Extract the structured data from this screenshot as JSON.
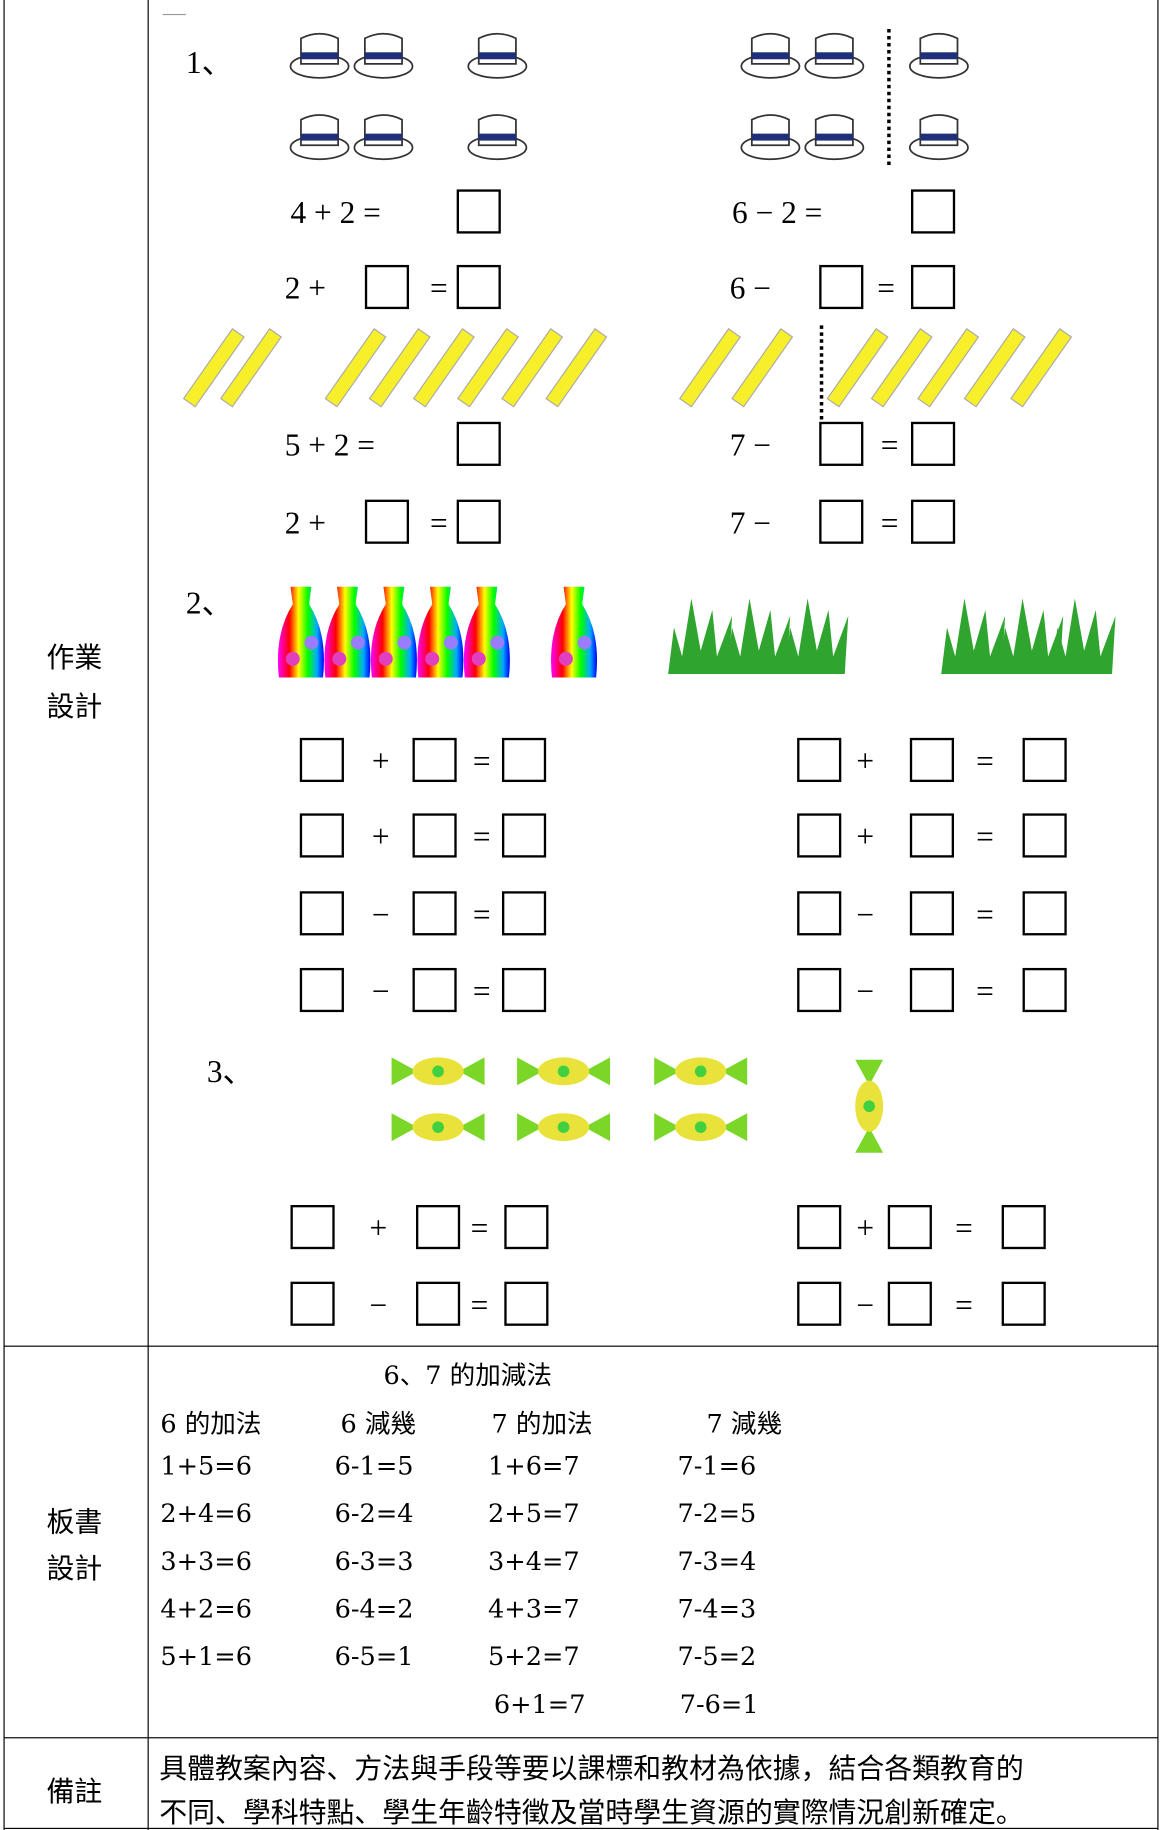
{
  "homework": {
    "label": [
      "作業",
      "設計"
    ],
    "problems": [
      {
        "number": "1、",
        "lines": [
          {
            "left": [
              "4 + 2 ="
            ],
            "right": [
              "6 − 2 ="
            ]
          },
          {
            "left": [
              "2 +",
              "="
            ],
            "right": [
              "6 −",
              "="
            ]
          },
          {
            "left": [
              "5 + 2 ="
            ],
            "right": [
              "7 −",
              "="
            ]
          },
          {
            "left": [
              "2 +",
              "="
            ],
            "right": [
              "7 −",
              "="
            ]
          }
        ]
      },
      {
        "number": "2、",
        "lines": [
          {
            "left": [
              "+",
              "="
            ],
            "right": [
              "+",
              "="
            ]
          },
          {
            "left": [
              "+",
              "="
            ],
            "right": [
              "+",
              "="
            ]
          },
          {
            "left": [
              "−",
              "="
            ],
            "right": [
              "−",
              "="
            ]
          },
          {
            "left": [
              "−",
              "="
            ],
            "right": [
              "−",
              "="
            ]
          }
        ]
      },
      {
        "number": "3、",
        "lines": [
          {
            "left": [
              "+",
              "="
            ],
            "right": [
              "+",
              "="
            ]
          },
          {
            "left": [
              "−",
              "="
            ],
            "right": [
              "−",
              "="
            ]
          }
        ]
      }
    ]
  },
  "board": {
    "label": [
      "板書",
      "設計"
    ],
    "title": "6、7 的加減法",
    "headers": [
      "6 的加法",
      "6 減幾",
      "7 的加法",
      "7 減幾"
    ],
    "rows": [
      [
        "1+5=6",
        "6-1=5",
        "1+6=7",
        "7-1=6"
      ],
      [
        "2+4=6",
        "6-2=4",
        "2+5=7",
        "7-2=5"
      ],
      [
        "3+3=6",
        "6-3=3",
        "3+4=7",
        "7-3=4"
      ],
      [
        "4+2=6",
        "6-4=2",
        "4+3=7",
        "7-4=3"
      ],
      [
        "5+1=6",
        "6-5=1",
        "5+2=7",
        "7-5=2"
      ]
    ],
    "extra": [
      "6+1=7",
      "7-6=1"
    ]
  },
  "notes": {
    "label": "備註",
    "lines": [
      "具體教案內容、方法與手段等要以課標和教材為依據，結合各類教育的",
      "不同、學科特點、學生年齡特徵及當時學生資源的實際情況創新確定。"
    ]
  }
}
